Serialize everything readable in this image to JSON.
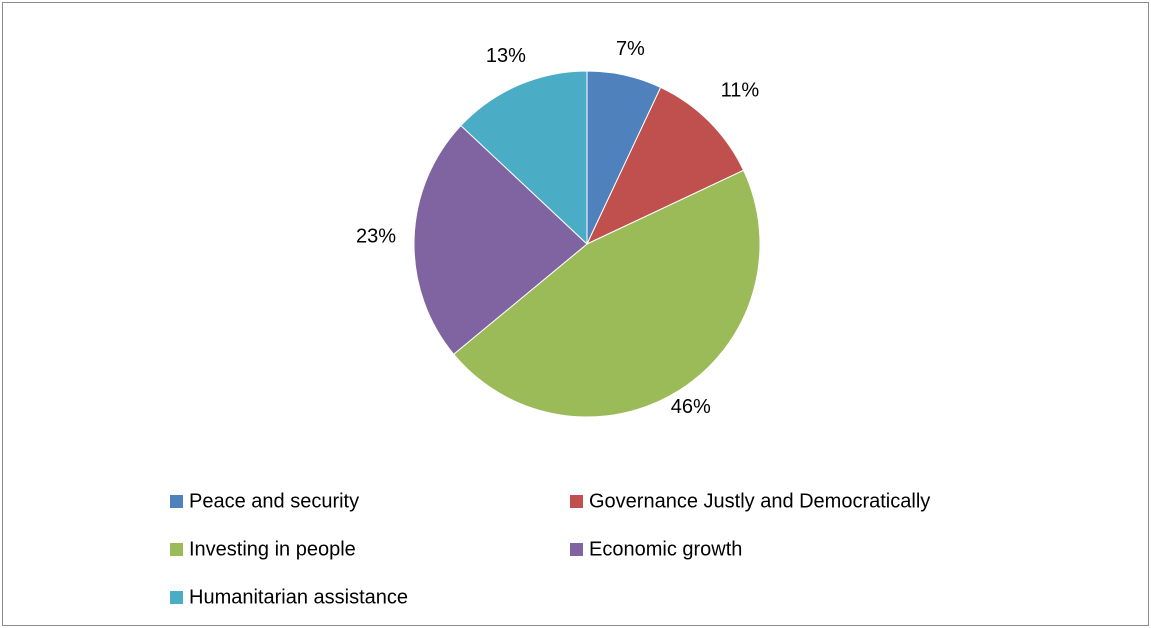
{
  "chart_data": {
    "type": "pie",
    "title": "",
    "categories": [
      "Peace and security",
      "Governance Justly and Democratically",
      "Investing in people",
      "Economic growth",
      "Humanitarian assistance"
    ],
    "values": [
      7,
      11,
      46,
      23,
      13
    ],
    "data_labels": [
      "7%",
      "11%",
      "46%",
      "23%",
      "13%"
    ],
    "colors": [
      "#4f81bd",
      "#c0504d",
      "#9bbb59",
      "#8064a2",
      "#4bacc6"
    ],
    "legend_position": "bottom",
    "start_angle": "12 o'clock",
    "direction": "clockwise"
  }
}
